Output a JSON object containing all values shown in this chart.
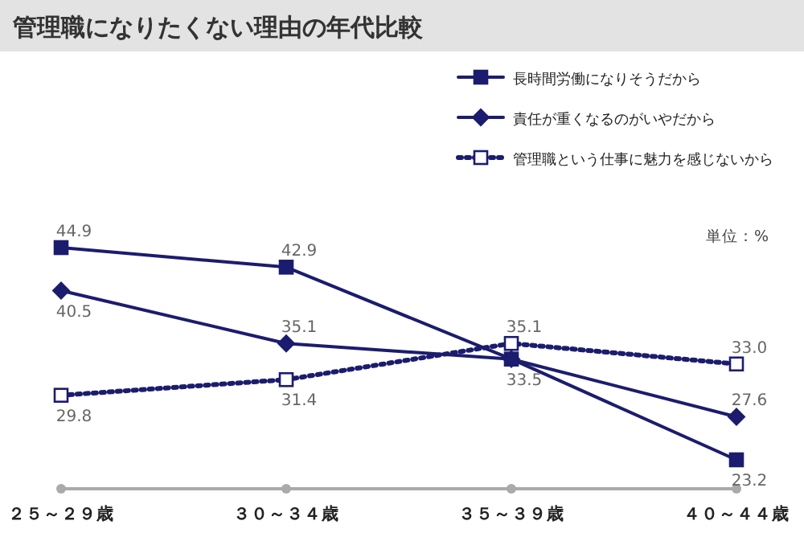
{
  "chart_data": {
    "type": "line",
    "title": "管理職になりたくない理由の年代比較",
    "categories": [
      "２５～２９歳",
      "３０～３４歳",
      "３５～３９歳",
      "４０～４４歳"
    ],
    "series": [
      {
        "name": "長時間労働になりそうだから",
        "color": "#1c1c6e",
        "marker": "square",
        "line_style": "solid",
        "values": [
          44.9,
          42.9,
          33.5,
          23.2
        ],
        "value_labels": [
          "44.9",
          "42.9",
          "33.5",
          "23.2"
        ]
      },
      {
        "name": "責任が重くなるのがいやだから",
        "color": "#1c1c6e",
        "marker": "diamond",
        "line_style": "solid",
        "values": [
          40.5,
          35.1,
          33.5,
          27.6
        ],
        "value_labels": [
          "40.5",
          "35.1",
          null,
          "27.6"
        ]
      },
      {
        "name": "管理職という仕事に魅力を感じないから",
        "color": "#1c1c6e",
        "marker": "square",
        "line_style": "dotted",
        "values": [
          29.8,
          31.4,
          35.1,
          33.0
        ],
        "value_labels": [
          "29.8",
          "31.4",
          "35.1",
          "33.0"
        ]
      }
    ],
    "annotations": [
      "単位：%"
    ],
    "legend": "top right",
    "grid": false
  }
}
